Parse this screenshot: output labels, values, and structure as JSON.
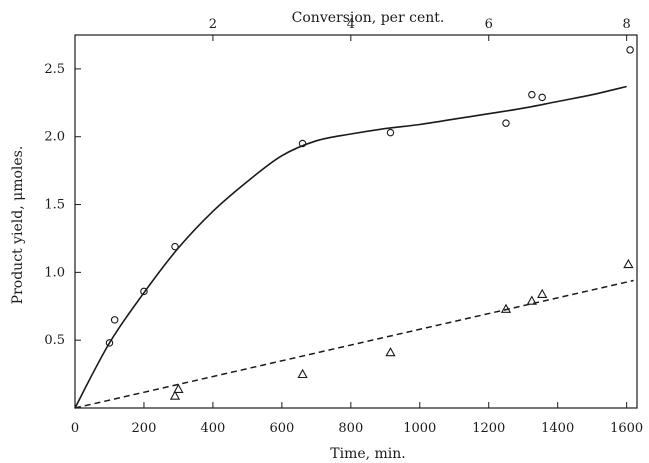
{
  "chart_data": {
    "type": "scatter",
    "title": "",
    "xlabel": "Time, min.",
    "ylabel": "Product yield, μmoles.",
    "top_axis_label": "Conversion, per cent.",
    "xlim": [
      0,
      1630
    ],
    "ylim": [
      0,
      2.75
    ],
    "top_axis_range": [
      0,
      8.15
    ],
    "x_ticks": [
      0,
      200,
      400,
      600,
      800,
      1000,
      1200,
      1400,
      1600
    ],
    "y_ticks": [
      0.5,
      1.0,
      1.5,
      2.0,
      2.5
    ],
    "y_tick_labels": [
      "0.5",
      "1.0",
      "1.5",
      "2.0",
      "2.5"
    ],
    "top_ticks": [
      2,
      4,
      6,
      8
    ],
    "grid": false,
    "series": [
      {
        "marker": "circle",
        "points": [
          {
            "x": 100,
            "y": 0.48
          },
          {
            "x": 115,
            "y": 0.65
          },
          {
            "x": 200,
            "y": 0.86
          },
          {
            "x": 290,
            "y": 1.19
          },
          {
            "x": 660,
            "y": 1.95
          },
          {
            "x": 915,
            "y": 2.03
          },
          {
            "x": 1250,
            "y": 2.1
          },
          {
            "x": 1325,
            "y": 2.31
          },
          {
            "x": 1355,
            "y": 2.29
          },
          {
            "x": 1610,
            "y": 2.64
          }
        ],
        "fit": {
          "style": "solid",
          "points": [
            [
              0,
              0
            ],
            [
              100,
              0.48
            ],
            [
              200,
              0.85
            ],
            [
              300,
              1.18
            ],
            [
              400,
              1.45
            ],
            [
              500,
              1.67
            ],
            [
              600,
              1.86
            ],
            [
              700,
              1.97
            ],
            [
              800,
              2.02
            ],
            [
              900,
              2.06
            ],
            [
              1000,
              2.09
            ],
            [
              1100,
              2.13
            ],
            [
              1200,
              2.17
            ],
            [
              1300,
              2.21
            ],
            [
              1400,
              2.26
            ],
            [
              1500,
              2.31
            ],
            [
              1600,
              2.37
            ]
          ]
        }
      },
      {
        "marker": "triangle",
        "points": [
          {
            "x": 290,
            "y": 0.09
          },
          {
            "x": 300,
            "y": 0.14
          },
          {
            "x": 660,
            "y": 0.25
          },
          {
            "x": 915,
            "y": 0.41
          },
          {
            "x": 1250,
            "y": 0.73
          },
          {
            "x": 1325,
            "y": 0.79
          },
          {
            "x": 1355,
            "y": 0.84
          },
          {
            "x": 1605,
            "y": 1.06
          }
        ],
        "fit": {
          "style": "dashed",
          "points": [
            [
              0,
              0
            ],
            [
              1620,
              0.94
            ]
          ]
        }
      }
    ]
  }
}
